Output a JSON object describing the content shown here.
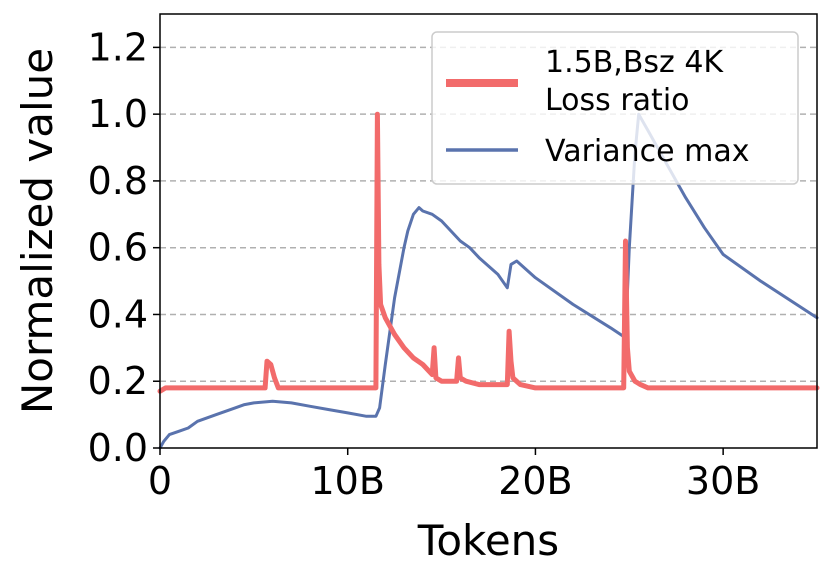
{
  "chart_data": {
    "type": "line",
    "xlabel": "Tokens",
    "ylabel": "Normalized value",
    "xlim": [
      0,
      35
    ],
    "ylim": [
      0,
      1.3
    ],
    "grid": "horizontal dashed",
    "legend_position": "top-right",
    "x_ticks": [
      {
        "value": 0,
        "label": "0"
      },
      {
        "value": 10,
        "label": "10B"
      },
      {
        "value": 20,
        "label": "20B"
      },
      {
        "value": 30,
        "label": "30B"
      }
    ],
    "y_ticks": [
      {
        "value": 0,
        "label": "0.0"
      },
      {
        "value": 0.2,
        "label": "0.2"
      },
      {
        "value": 0.4,
        "label": "0.4"
      },
      {
        "value": 0.6,
        "label": "0.6"
      },
      {
        "value": 0.8,
        "label": "0.8"
      },
      {
        "value": 1.0,
        "label": "1.0"
      },
      {
        "value": 1.2,
        "label": "1.2"
      }
    ],
    "series": [
      {
        "name": "1.5B,Bsz 4K\nLoss ratio",
        "legend_lines": [
          "1.5B,Bsz 4K",
          "Loss ratio"
        ],
        "color": "#f26b6b",
        "x": [
          0,
          0.3,
          5.6,
          5.7,
          5.9,
          6.1,
          6.3,
          11.5,
          11.58,
          11.66,
          11.75,
          12.0,
          12.5,
          13.0,
          13.5,
          14.0,
          14.5,
          14.6,
          14.7,
          15.0,
          15.5,
          15.8,
          15.9,
          16.0,
          16.3,
          17.0,
          18.0,
          18.5,
          18.6,
          18.7,
          18.8,
          19.2,
          20.0,
          22.0,
          24.7,
          24.8,
          24.9,
          25.0,
          25.3,
          25.6,
          26.0,
          27.0,
          30.0,
          35.0
        ],
        "values": [
          0.17,
          0.18,
          0.18,
          0.26,
          0.25,
          0.21,
          0.18,
          0.18,
          1.0,
          0.55,
          0.43,
          0.39,
          0.34,
          0.3,
          0.27,
          0.25,
          0.22,
          0.3,
          0.21,
          0.2,
          0.2,
          0.2,
          0.27,
          0.21,
          0.2,
          0.19,
          0.19,
          0.19,
          0.35,
          0.26,
          0.21,
          0.19,
          0.18,
          0.18,
          0.18,
          0.62,
          0.3,
          0.23,
          0.2,
          0.19,
          0.18,
          0.18,
          0.18,
          0.18
        ]
      },
      {
        "name": "Variance max",
        "legend_lines": [
          "Variance max"
        ],
        "color": "#5a73ad",
        "x": [
          0,
          0.2,
          0.5,
          1.0,
          1.5,
          2.0,
          3.0,
          4.0,
          4.5,
          5.0,
          6.0,
          7.0,
          8.0,
          9.0,
          10.0,
          11.0,
          11.5,
          11.7,
          12.0,
          12.5,
          13.0,
          13.2,
          13.5,
          13.8,
          14.0,
          14.5,
          15.0,
          16.0,
          16.5,
          17.0,
          18.0,
          18.5,
          18.7,
          19.0,
          20.0,
          22.0,
          24.0,
          24.8,
          25.0,
          25.3,
          25.5,
          26.0,
          27.0,
          28.0,
          29.0,
          30.0,
          32.0,
          35.0
        ],
        "values": [
          0.0,
          0.02,
          0.04,
          0.05,
          0.06,
          0.08,
          0.1,
          0.12,
          0.13,
          0.135,
          0.14,
          0.135,
          0.125,
          0.115,
          0.105,
          0.095,
          0.095,
          0.12,
          0.25,
          0.45,
          0.6,
          0.65,
          0.7,
          0.72,
          0.71,
          0.7,
          0.68,
          0.62,
          0.6,
          0.57,
          0.52,
          0.48,
          0.55,
          0.56,
          0.51,
          0.43,
          0.36,
          0.33,
          0.6,
          0.88,
          1.0,
          0.95,
          0.85,
          0.75,
          0.66,
          0.58,
          0.5,
          0.39
        ]
      }
    ]
  }
}
